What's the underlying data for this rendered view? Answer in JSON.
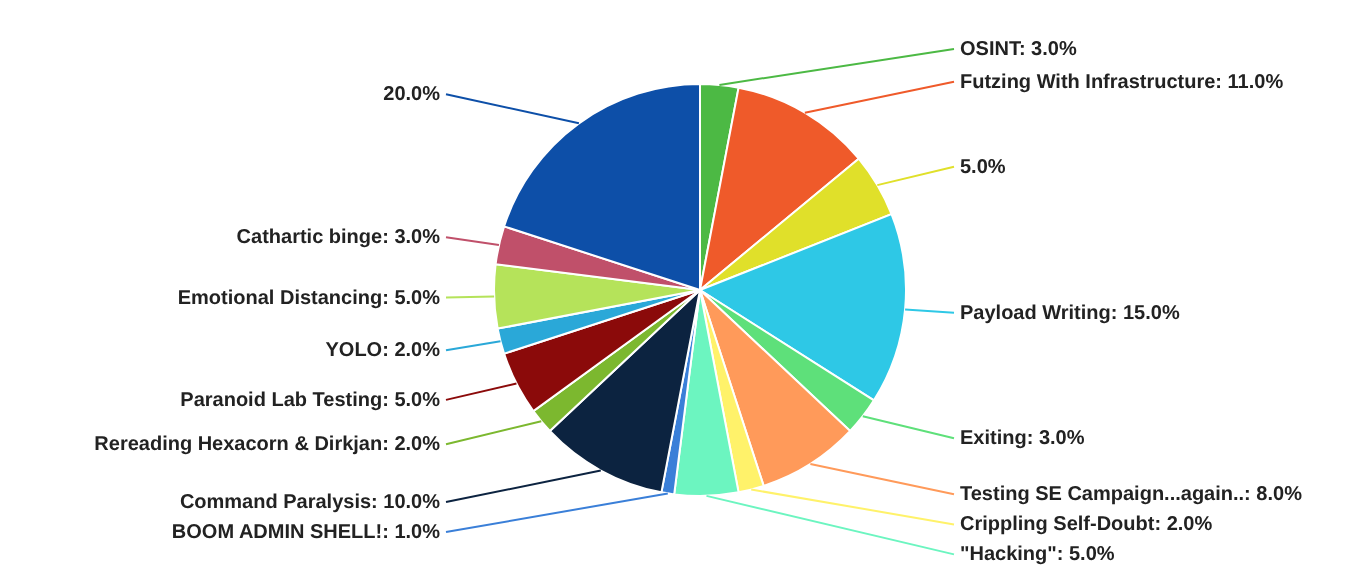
{
  "chart_data": {
    "type": "pie",
    "categories": [
      "OSINT",
      "Futzing With Infrastructure",
      null,
      "Payload Writing",
      "Exiting",
      "Testing SE Campaign...again..",
      "Crippling Self-Doubt",
      "\"Hacking\"",
      "BOOM ADMIN SHELL!",
      "Command Paralysis",
      "Rereading Hexacorn & Dirkjan",
      "Paranoid Lab Testing",
      "YOLO",
      "Emotional Distancing",
      "Cathartic binge",
      null
    ],
    "values": [
      3,
      11,
      5,
      15,
      3,
      8,
      2,
      5,
      1,
      10,
      2,
      5,
      2,
      5,
      3,
      20
    ],
    "value_labels": [
      "3.0%",
      "11.0%",
      "5.0%",
      "15.0%",
      "3.0%",
      "8.0%",
      "2.0%",
      "5.0%",
      "1.0%",
      "10.0%",
      "2.0%",
      "5.0%",
      "2.0%",
      "5.0%",
      "3.0%",
      "20.0%"
    ],
    "colors": [
      "#4cb944",
      "#ef5a2a",
      "#e0e02a",
      "#2ec8e6",
      "#5ee07a",
      "#ff9a5a",
      "#fff26a",
      "#6cf5c0",
      "#3a7fd8",
      "#0c2340",
      "#7cb82f",
      "#8b0a0a",
      "#2aa8d8",
      "#b5e35a",
      "#c0506a",
      "#0d4fa8"
    ]
  }
}
